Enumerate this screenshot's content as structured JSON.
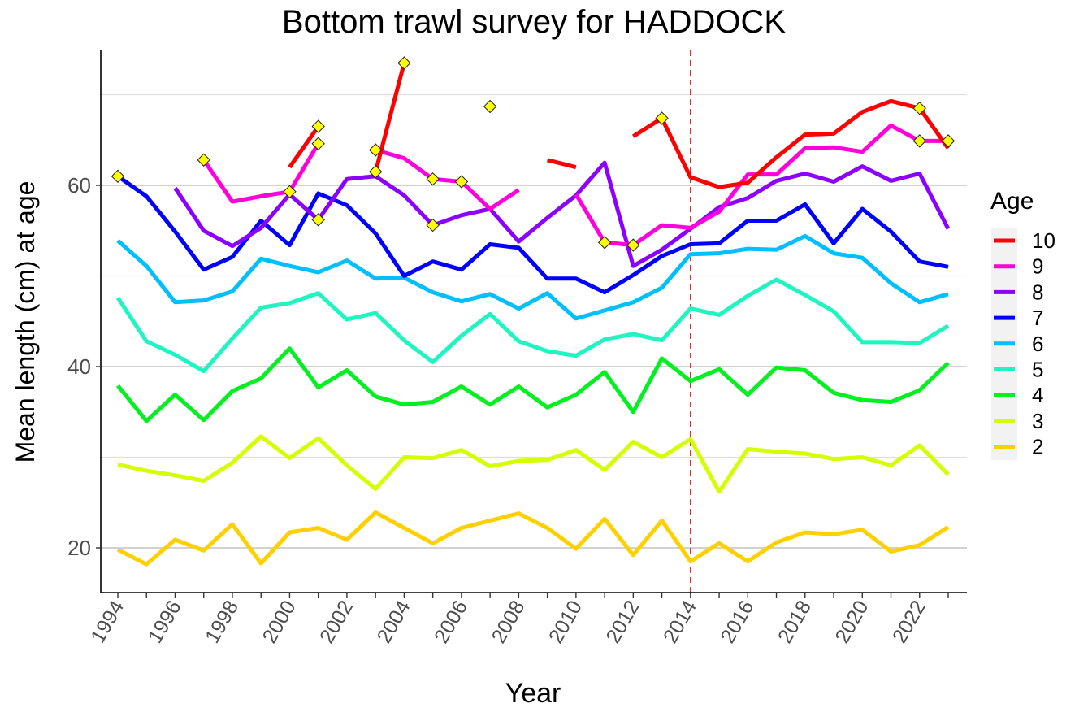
{
  "chart_data": {
    "type": "line",
    "title": "Bottom trawl survey for HADDOCK",
    "xlabel": "Year",
    "ylabel": "Mean length (cm) at age",
    "xlim": [
      1994,
      2023
    ],
    "ylim": [
      15.1,
      74.9
    ],
    "x_tick_labels": [
      "1994",
      "1996",
      "1998",
      "2000",
      "2002",
      "2004",
      "2006",
      "2008",
      "2010",
      "2012",
      "2014",
      "2016",
      "2018",
      "2020",
      "2022"
    ],
    "y_tick_labels": [
      "20",
      "40",
      "60"
    ],
    "grid": "horizontal",
    "legend": {
      "title": "Age",
      "placement": "right"
    },
    "reference_line": {
      "x": 2014,
      "color": "#e8262b",
      "style": "dashed"
    },
    "x": [
      1994,
      1995,
      1996,
      1997,
      1998,
      1999,
      2000,
      2001,
      2002,
      2003,
      2004,
      2005,
      2006,
      2007,
      2008,
      2009,
      2010,
      2011,
      2012,
      2013,
      2014,
      2015,
      2016,
      2017,
      2018,
      2019,
      2020,
      2021,
      2022,
      2023
    ],
    "series": [
      {
        "name": "10",
        "color": "#ff0000",
        "values": [
          null,
          null,
          null,
          null,
          null,
          null,
          62.0,
          66.5,
          null,
          61.5,
          73.5,
          null,
          null,
          68.7,
          null,
          62.8,
          62.0,
          null,
          65.4,
          67.4,
          60.9,
          59.8,
          60.3,
          63.1,
          65.6,
          65.7,
          68.1,
          69.3,
          68.5,
          64.1
        ]
      },
      {
        "name": "9",
        "color": "#ff00dd",
        "values": [
          null,
          null,
          null,
          62.8,
          58.2,
          58.8,
          59.3,
          64.6,
          null,
          63.9,
          63.0,
          60.7,
          60.4,
          57.4,
          59.5,
          null,
          59.0,
          53.7,
          53.4,
          55.6,
          55.3,
          57.1,
          61.2,
          61.2,
          64.1,
          64.2,
          63.7,
          66.6,
          64.9,
          64.9
        ]
      },
      {
        "name": "8",
        "color": "#8c00ff",
        "values": [
          null,
          null,
          59.7,
          55.0,
          53.3,
          55.3,
          59.0,
          56.2,
          60.7,
          61.0,
          58.9,
          55.6,
          56.7,
          57.4,
          53.8,
          56.4,
          58.9,
          62.5,
          51.1,
          52.9,
          55.2,
          57.6,
          58.6,
          60.5,
          61.3,
          60.4,
          62.1,
          60.5,
          61.3,
          55.2
        ]
      },
      {
        "name": "7",
        "color": "#0000ff",
        "values": [
          61.0,
          58.8,
          54.9,
          50.7,
          52.1,
          56.1,
          53.4,
          59.1,
          57.8,
          54.7,
          50.0,
          51.6,
          50.7,
          53.5,
          53.1,
          49.7,
          49.7,
          48.2,
          50.1,
          52.2,
          53.5,
          53.6,
          56.1,
          56.1,
          57.9,
          53.6,
          57.4,
          54.9,
          51.6,
          51.0
        ]
      },
      {
        "name": "6",
        "color": "#00bfff",
        "values": [
          53.9,
          51.1,
          47.1,
          47.3,
          48.3,
          51.9,
          51.1,
          50.4,
          51.7,
          49.7,
          49.8,
          48.2,
          47.2,
          48.0,
          46.4,
          48.1,
          45.3,
          46.2,
          47.1,
          48.7,
          52.4,
          52.5,
          53.0,
          52.9,
          54.4,
          52.5,
          52.0,
          49.2,
          47.1,
          48.0
        ]
      },
      {
        "name": "5",
        "color": "#1ff5c0",
        "values": [
          47.6,
          42.8,
          41.3,
          39.5,
          43.1,
          46.5,
          47.0,
          48.1,
          45.2,
          45.9,
          42.9,
          40.5,
          43.4,
          45.8,
          42.8,
          41.7,
          41.2,
          43.0,
          43.6,
          42.9,
          46.4,
          45.7,
          47.8,
          49.6,
          47.9,
          46.1,
          42.7,
          42.7,
          42.6,
          44.5
        ]
      },
      {
        "name": "4",
        "color": "#00f020",
        "values": [
          37.9,
          34.0,
          36.9,
          34.1,
          37.3,
          38.7,
          42.0,
          37.7,
          39.6,
          36.7,
          35.8,
          36.1,
          37.8,
          35.8,
          37.8,
          35.5,
          36.9,
          39.4,
          35.0,
          40.9,
          38.4,
          39.7,
          36.9,
          39.9,
          39.6,
          37.1,
          36.3,
          36.1,
          37.4,
          40.4
        ]
      },
      {
        "name": "3",
        "color": "#d4ff00",
        "values": [
          29.2,
          28.5,
          28.0,
          27.4,
          29.4,
          32.3,
          29.9,
          32.1,
          29.1,
          26.5,
          30.0,
          29.9,
          30.8,
          29.0,
          29.6,
          29.7,
          30.8,
          28.6,
          31.7,
          30.0,
          32.0,
          26.2,
          30.9,
          30.6,
          30.4,
          29.8,
          30.0,
          29.1,
          31.3,
          28.1
        ]
      },
      {
        "name": "2",
        "color": "#ffd000",
        "values": [
          19.8,
          18.2,
          20.9,
          19.7,
          22.6,
          18.3,
          21.7,
          22.2,
          20.9,
          23.9,
          22.2,
          20.5,
          22.2,
          23.0,
          23.8,
          22.2,
          19.9,
          23.2,
          19.2,
          23.0,
          18.5,
          20.5,
          18.5,
          20.6,
          21.7,
          21.5,
          22.0,
          19.6,
          20.3,
          22.3
        ]
      }
    ],
    "markers": {
      "shape": "diamond",
      "color": "#ffff00",
      "points": [
        {
          "x": 1994,
          "y": 61.0
        },
        {
          "x": 1997,
          "y": 62.8
        },
        {
          "x": 2000,
          "y": 59.3
        },
        {
          "x": 2001,
          "y": 66.5
        },
        {
          "x": 2001,
          "y": 64.6
        },
        {
          "x": 2001,
          "y": 56.2
        },
        {
          "x": 2003,
          "y": 63.9
        },
        {
          "x": 2003,
          "y": 61.5
        },
        {
          "x": 2004,
          "y": 73.5
        },
        {
          "x": 2005,
          "y": 60.7
        },
        {
          "x": 2005,
          "y": 55.6
        },
        {
          "x": 2006,
          "y": 60.4
        },
        {
          "x": 2007,
          "y": 68.7
        },
        {
          "x": 2011,
          "y": 53.7
        },
        {
          "x": 2012,
          "y": 53.4
        },
        {
          "x": 2013,
          "y": 67.4
        },
        {
          "x": 2022,
          "y": 68.5
        },
        {
          "x": 2022,
          "y": 64.9
        },
        {
          "x": 2023,
          "y": 64.9
        }
      ]
    }
  }
}
